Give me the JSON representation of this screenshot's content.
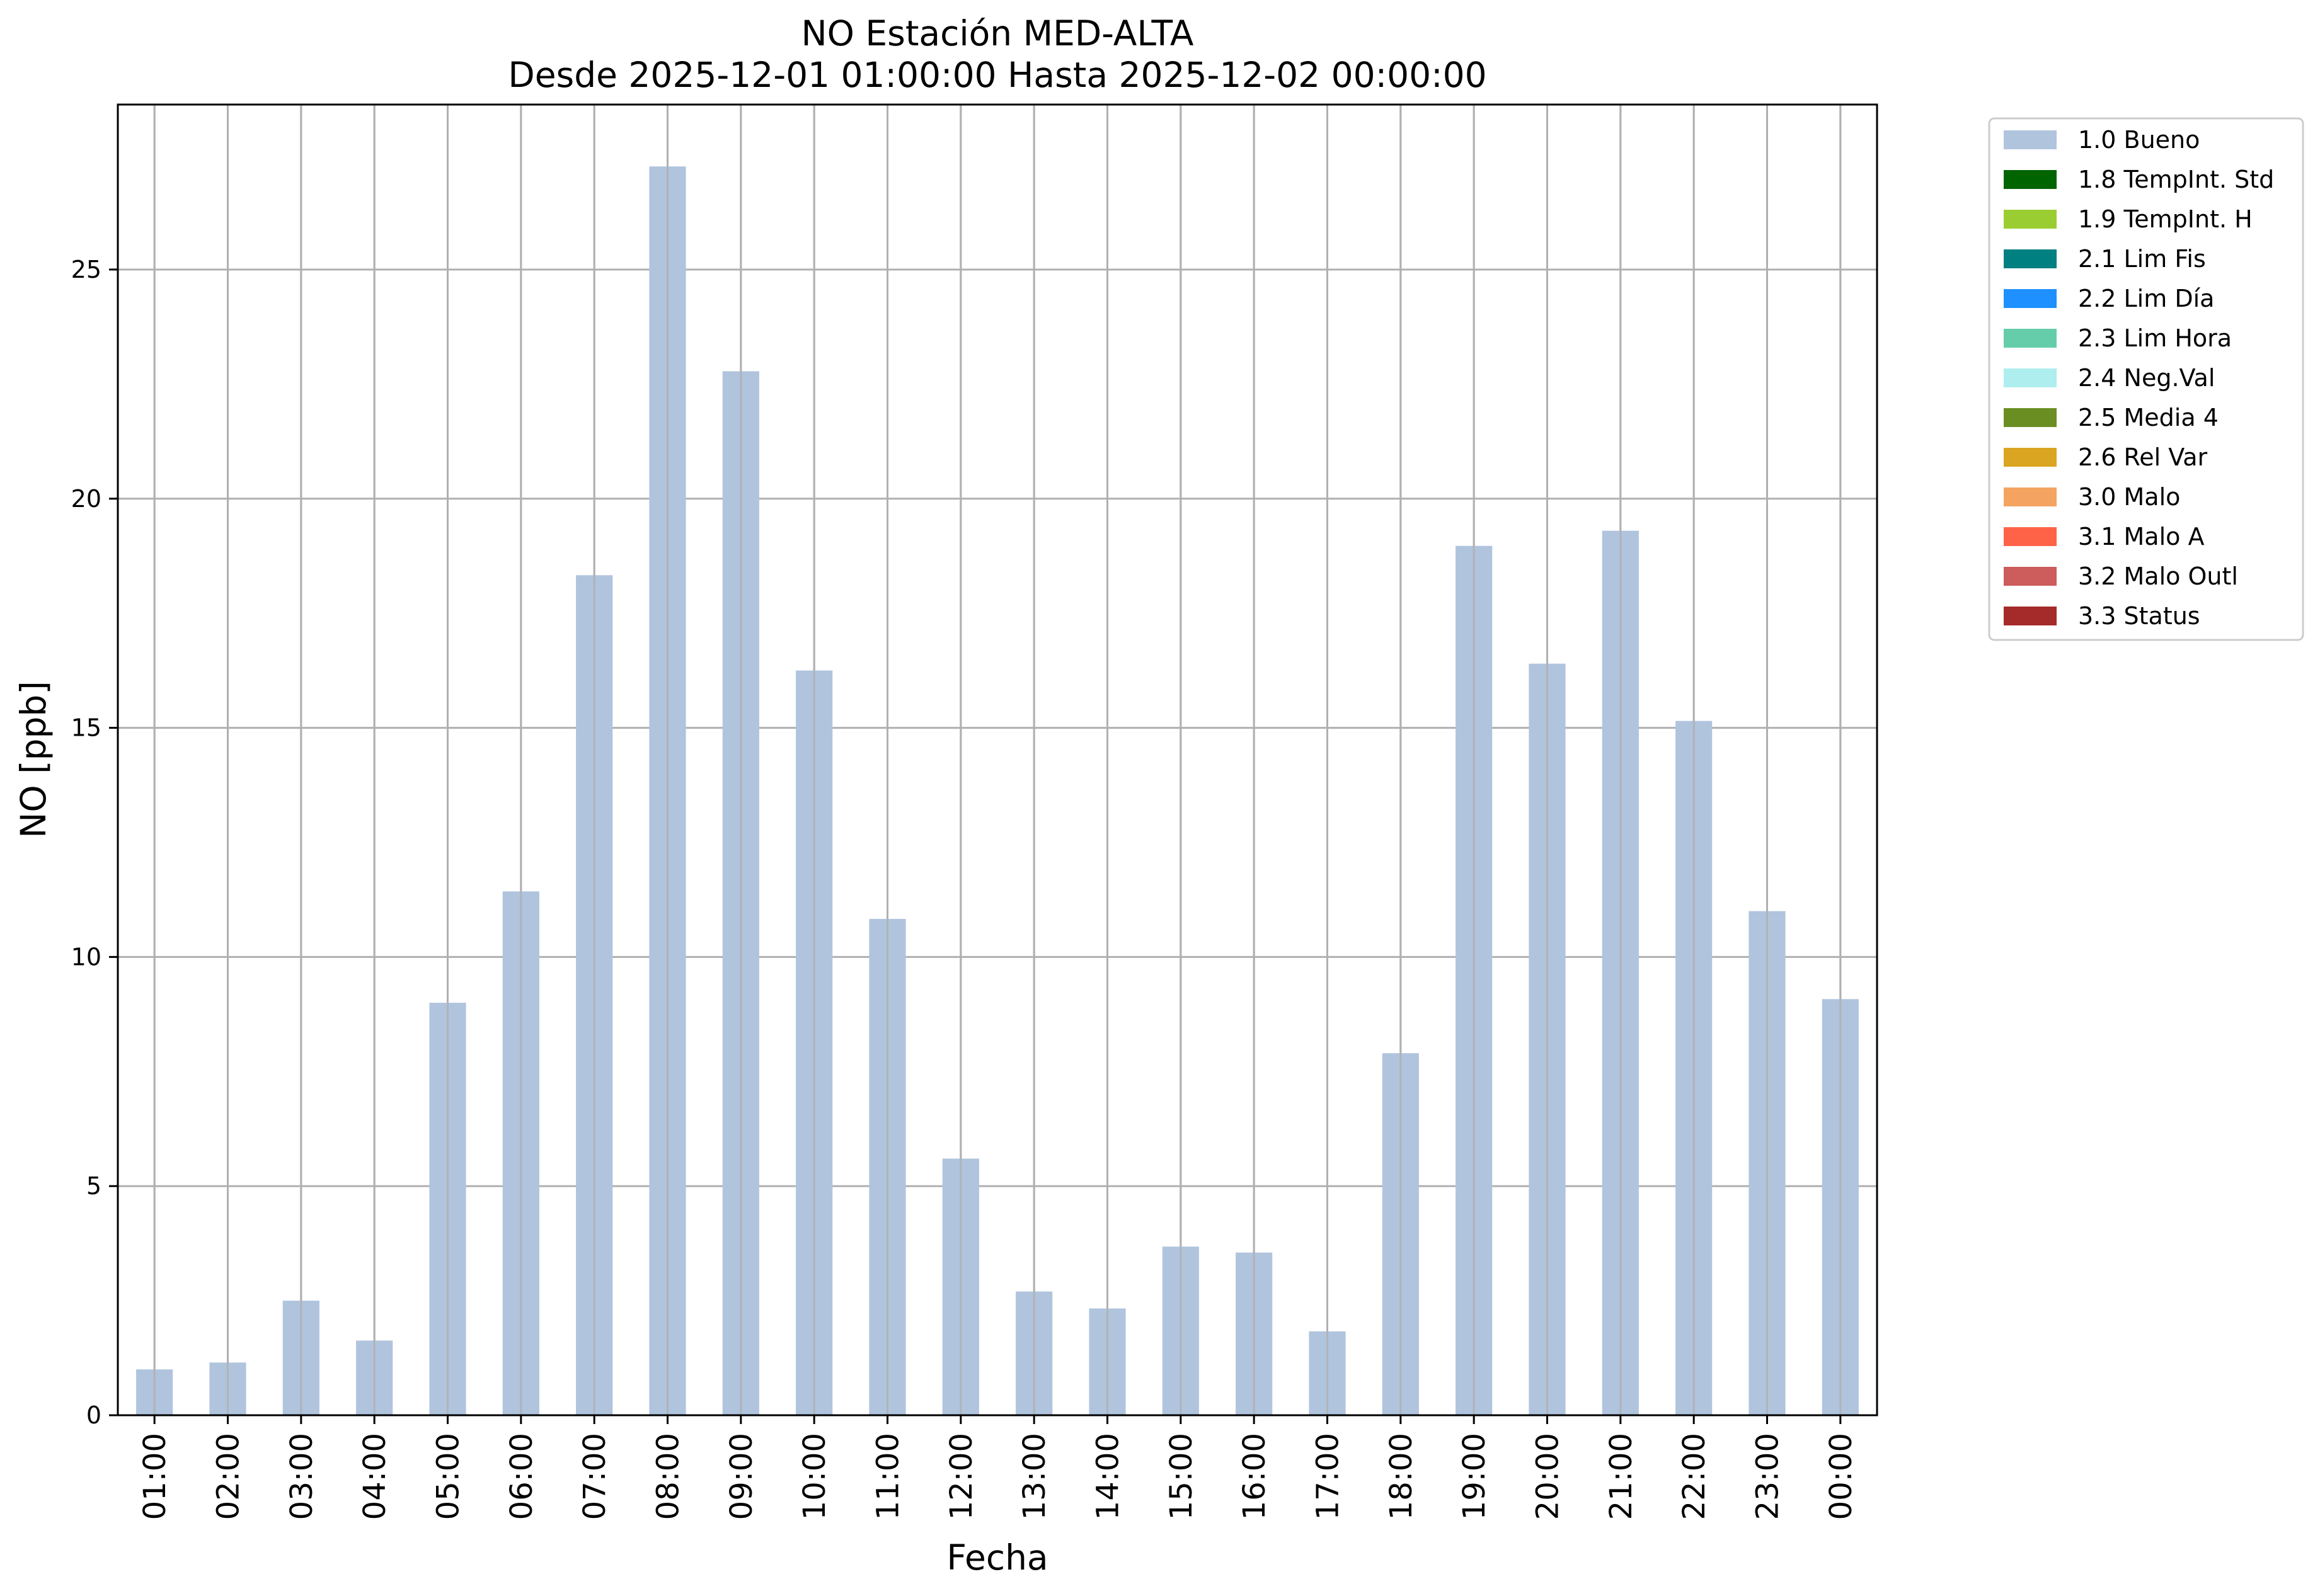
{
  "chart_data": {
    "type": "bar",
    "title": "NO Estación MED-ALTA",
    "subtitle": "Desde 2025-12-01 01:00:00 Hasta 2025-12-02 00:00:00",
    "xlabel": "Fecha",
    "ylabel": "NO [ppb]",
    "ylim": [
      0,
      28.6
    ],
    "yticks": [
      "0",
      "5",
      "10",
      "15",
      "20",
      "25"
    ],
    "grid": true,
    "legend_position": "outside-top-right",
    "categories": [
      "01:00",
      "02:00",
      "03:00",
      "04:00",
      "05:00",
      "06:00",
      "07:00",
      "08:00",
      "09:00",
      "10:00",
      "11:00",
      "12:00",
      "13:00",
      "14:00",
      "15:00",
      "16:00",
      "17:00",
      "18:00",
      "19:00",
      "20:00",
      "21:00",
      "22:00",
      "23:00",
      "00:00"
    ],
    "series": [
      {
        "name": "1.0 Bueno",
        "color": "#b0c4de",
        "values": [
          1.0,
          1.15,
          2.5,
          1.63,
          9.0,
          11.43,
          18.33,
          27.25,
          22.78,
          16.25,
          10.83,
          5.6,
          2.7,
          2.33,
          3.68,
          3.55,
          1.83,
          7.9,
          18.97,
          16.4,
          19.3,
          15.15,
          11.0,
          9.08
        ]
      }
    ],
    "legend": [
      {
        "label": "1.0 Bueno",
        "color": "#b0c4de"
      },
      {
        "label": "1.8 TempInt. Std",
        "color": "#006400"
      },
      {
        "label": "1.9 TempInt. H",
        "color": "#9acd32"
      },
      {
        "label": "2.1 Lim Fis",
        "color": "#008080"
      },
      {
        "label": "2.2 Lim Día",
        "color": "#1e90ff"
      },
      {
        "label": "2.3 Lim Hora",
        "color": "#66cdaa"
      },
      {
        "label": "2.4 Neg.Val",
        "color": "#afeeee"
      },
      {
        "label": "2.5 Media 4",
        "color": "#6b8e23"
      },
      {
        "label": "2.6 Rel Var",
        "color": "#daa520"
      },
      {
        "label": "3.0 Malo",
        "color": "#f4a460"
      },
      {
        "label": "3.1 Malo A",
        "color": "#ff6347"
      },
      {
        "label": "3.2 Malo Outl",
        "color": "#cd5c5c"
      },
      {
        "label": "3.3 Status",
        "color": "#a52a2a"
      }
    ]
  }
}
